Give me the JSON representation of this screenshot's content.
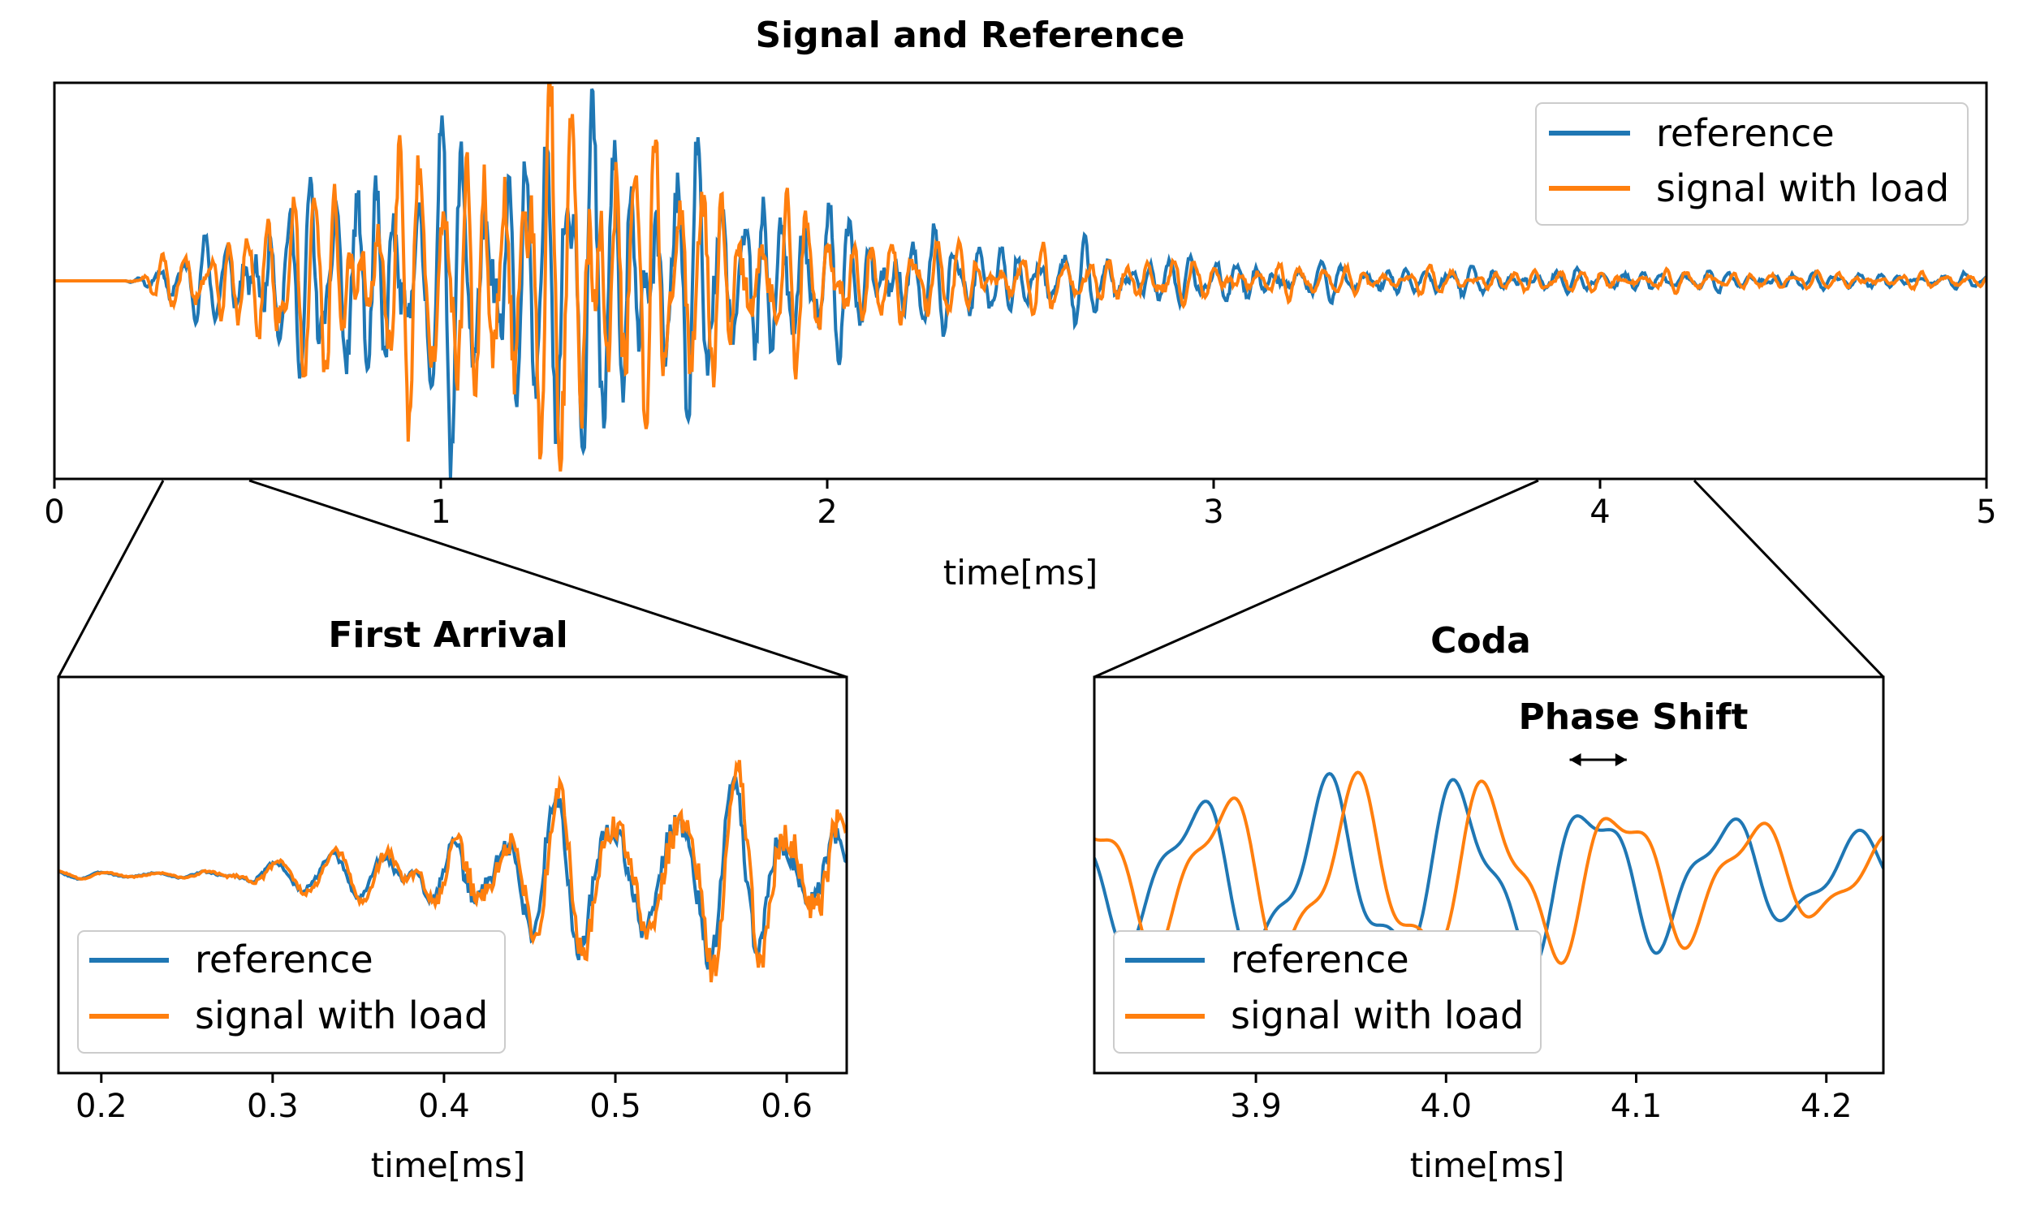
{
  "colors": {
    "reference": "#1f77b4",
    "signal": "#ff7f0e"
  },
  "chart_data": [
    {
      "id": "main",
      "type": "line",
      "title": "Signal and Reference",
      "xlabel": "time[ms]",
      "ylabel": "",
      "xlim": [
        0,
        5
      ],
      "xticks": [
        0,
        1,
        2,
        3,
        4,
        5
      ],
      "xtick_labels": [
        "0",
        "1",
        "2",
        "3",
        "4",
        "5"
      ],
      "ylim": [
        -1.05,
        1.05
      ],
      "legend": {
        "position": "upper right",
        "entries": [
          "reference",
          "signal with load"
        ]
      },
      "series": [
        {
          "name": "reference",
          "color": "#1f77b4",
          "x": [
            0,
            0.18,
            0.22,
            0.3,
            0.4,
            0.5,
            0.7,
            0.9,
            1.0,
            1.1,
            1.2,
            1.3,
            1.42,
            1.5,
            1.6,
            1.8,
            2.0,
            2.2,
            2.5,
            2.7,
            3.0,
            3.5,
            4.0,
            4.5,
            5.0
          ],
          "y": [
            0,
            0,
            0.02,
            0.12,
            0.18,
            0.3,
            0.48,
            0.62,
            0.7,
            0.72,
            0.75,
            0.8,
            0.85,
            0.78,
            0.62,
            0.48,
            0.35,
            0.25,
            0.18,
            0.16,
            0.1,
            0.07,
            0.05,
            0.04,
            0.03
          ]
        },
        {
          "name": "signal with load",
          "color": "#ff7f0e",
          "x": [
            0,
            0.18,
            0.22,
            0.3,
            0.4,
            0.5,
            0.7,
            0.9,
            1.0,
            1.1,
            1.2,
            1.3,
            1.42,
            1.5,
            1.6,
            1.8,
            2.0,
            2.2,
            2.5,
            2.7,
            3.0,
            3.5,
            4.0,
            4.5,
            5.0
          ],
          "y": [
            0,
            0,
            0.02,
            0.12,
            0.2,
            0.3,
            0.5,
            0.58,
            0.65,
            0.72,
            0.78,
            0.85,
            1.0,
            0.75,
            0.55,
            0.42,
            0.3,
            0.2,
            0.15,
            0.12,
            0.09,
            0.06,
            0.05,
            0.04,
            0.03
          ]
        }
      ]
    },
    {
      "id": "first",
      "type": "line",
      "title": "First Arrival",
      "xlabel": "time[ms]",
      "ylabel": "",
      "xlim": [
        0.175,
        0.635
      ],
      "xticks": [
        0.2,
        0.3,
        0.4,
        0.5,
        0.6
      ],
      "xtick_labels": [
        "0.2",
        "0.3",
        "0.4",
        "0.5",
        "0.6"
      ],
      "ylim": [
        -1.0,
        1.0
      ],
      "legend": {
        "position": "lower left",
        "entries": [
          "reference",
          "signal with load"
        ]
      },
      "series": [
        {
          "name": "reference",
          "color": "#1f77b4",
          "x": [
            0.175,
            0.25,
            0.36,
            0.4,
            0.45,
            0.5,
            0.55,
            0.6,
            0.635
          ],
          "y": [
            0.02,
            0.02,
            0.12,
            0.35,
            0.38,
            0.4,
            0.45,
            0.45,
            0.5
          ]
        },
        {
          "name": "signal with load",
          "color": "#ff7f0e",
          "x": [
            0.175,
            0.25,
            0.36,
            0.4,
            0.45,
            0.5,
            0.55,
            0.6,
            0.635
          ],
          "y": [
            0.02,
            0.02,
            0.14,
            0.38,
            0.4,
            0.42,
            0.48,
            0.55,
            0.75
          ]
        }
      ]
    },
    {
      "id": "coda",
      "type": "line",
      "title": "Coda",
      "annotation": "Phase Shift",
      "annotation_arrow_x": [
        4.065,
        4.095
      ],
      "xlabel": "time[ms]",
      "ylabel": "",
      "xlim": [
        3.815,
        4.23
      ],
      "xticks": [
        3.9,
        4.0,
        4.1,
        4.2
      ],
      "xtick_labels": [
        "3.9",
        "4.0",
        "4.1",
        "4.2"
      ],
      "ylim": [
        -1.0,
        1.0
      ],
      "legend": {
        "position": "lower left",
        "entries": [
          "reference",
          "signal with load"
        ]
      },
      "series": [
        {
          "name": "reference",
          "color": "#1f77b4",
          "period_ms": 0.07,
          "phase_ms": 0.0
        },
        {
          "name": "signal with load",
          "color": "#ff7f0e",
          "period_ms": 0.07,
          "phase_ms": 0.015
        }
      ]
    }
  ]
}
